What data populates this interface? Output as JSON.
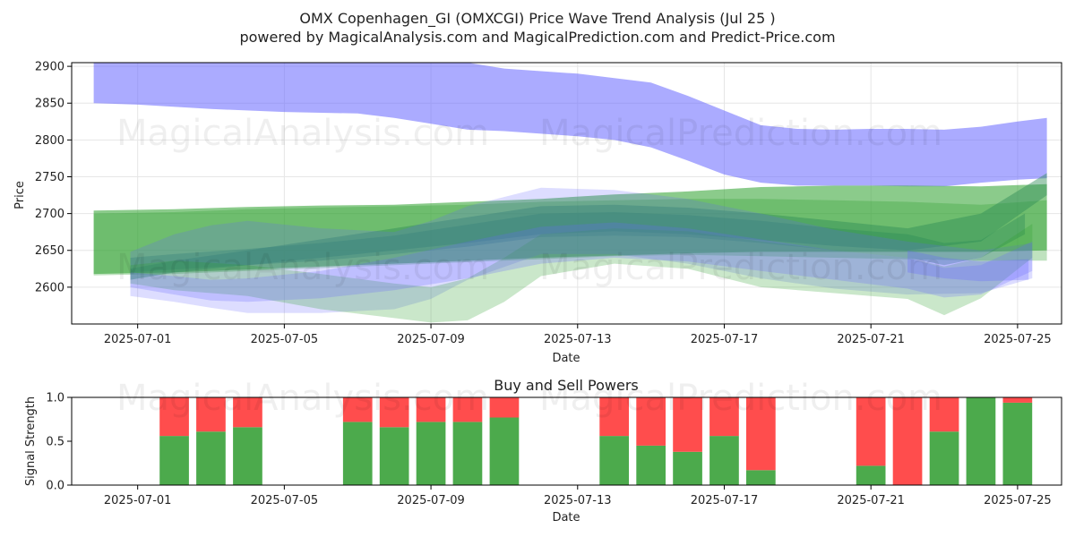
{
  "figure": {
    "title": "OMX Copenhagen_GI (OMXCGI) Price Wave Trend Analysis (Jul 25 )",
    "subtitle": "powered by MagicalAnalysis.com and MagicalPrediction.com and Predict-Price.com",
    "watermarks": [
      "MagicalAnalysis.com",
      "MagicalPrediction.com"
    ]
  },
  "colors": {
    "blue_band": "#6666ff",
    "green_band": "#2ca02c",
    "teal_band": "#2e8b57",
    "buy": "#4caa4c",
    "sell": "#ff4d4d",
    "grid": "#e6e6e6",
    "axis": "#000000"
  },
  "chart_data": [
    {
      "type": "area",
      "title": "",
      "xlabel": "Date",
      "ylabel": "Price",
      "x_range_days": [
        -1.8,
        25.2
      ],
      "ylim": [
        2550,
        2905
      ],
      "date_origin": "2025-07-01",
      "x_ticks": [
        {
          "day": 0,
          "label": "2025-07-01"
        },
        {
          "day": 4,
          "label": "2025-07-05"
        },
        {
          "day": 8,
          "label": "2025-07-09"
        },
        {
          "day": 12,
          "label": "2025-07-13"
        },
        {
          "day": 16,
          "label": "2025-07-17"
        },
        {
          "day": 20,
          "label": "2025-07-21"
        },
        {
          "day": 24,
          "label": "2025-07-25"
        }
      ],
      "y_ticks": [
        2600,
        2650,
        2700,
        2750,
        2800,
        2850,
        2900
      ],
      "grid": true,
      "series": [
        {
          "name": "upper blue wave",
          "color": "blue",
          "opacity": 0.55,
          "x": [
            -1.2,
            0,
            2,
            4,
            6,
            7,
            8,
            9,
            10,
            12,
            13,
            14,
            15,
            16,
            17,
            18,
            19,
            20,
            21,
            22,
            23,
            24,
            24.8
          ],
          "upper": [
            2905,
            2905,
            2905,
            2905,
            2905,
            2905,
            2905,
            2905,
            2897,
            2890,
            2884,
            2878,
            2860,
            2840,
            2820,
            2815,
            2814,
            2815,
            2815,
            2814,
            2818,
            2825,
            2830
          ],
          "lower": [
            2850,
            2848,
            2842,
            2838,
            2836,
            2830,
            2822,
            2814,
            2812,
            2805,
            2800,
            2790,
            2772,
            2753,
            2742,
            2738,
            2738,
            2738,
            2737,
            2737,
            2742,
            2746,
            2748
          ]
        },
        {
          "name": "wide green band",
          "color": "green",
          "opacity": 0.55,
          "x": [
            -1.2,
            1,
            3,
            5,
            7,
            9,
            11,
            13,
            15,
            17,
            19,
            21,
            23,
            24.8
          ],
          "upper": [
            2704,
            2706,
            2709,
            2711,
            2712,
            2716,
            2720,
            2726,
            2730,
            2736,
            2738,
            2738,
            2737,
            2740
          ],
          "lower": [
            2618,
            2620,
            2624,
            2628,
            2632,
            2636,
            2640,
            2643,
            2646,
            2648,
            2648,
            2648,
            2648,
            2650
          ]
        },
        {
          "name": "green band 2",
          "color": "green",
          "opacity": 0.3,
          "x": [
            -1.2,
            1,
            3,
            5,
            7,
            9,
            11,
            13,
            15,
            17,
            19,
            21,
            23,
            24.8
          ],
          "upper": [
            2700,
            2702,
            2706,
            2708,
            2710,
            2712,
            2716,
            2718,
            2720,
            2720,
            2718,
            2716,
            2712,
            2718
          ],
          "lower": [
            2616,
            2618,
            2622,
            2626,
            2630,
            2634,
            2638,
            2642,
            2644,
            2642,
            2640,
            2638,
            2636,
            2636
          ]
        },
        {
          "name": "teal ribbon high",
          "color": "teal",
          "opacity": 0.45,
          "x": [
            -0.2,
            1,
            3,
            5,
            7,
            9,
            11,
            13,
            15,
            17,
            19,
            21,
            23,
            24.8
          ],
          "upper": [
            2625,
            2636,
            2650,
            2665,
            2680,
            2695,
            2710,
            2712,
            2708,
            2700,
            2690,
            2680,
            2700,
            2755
          ],
          "lower": [
            2610,
            2620,
            2630,
            2640,
            2650,
            2660,
            2672,
            2676,
            2672,
            2664,
            2656,
            2650,
            2662,
            2725
          ]
        },
        {
          "name": "teal ribbon mid",
          "color": "teal",
          "opacity": 0.4,
          "x": [
            -0.2,
            1,
            3,
            5,
            7,
            9,
            11,
            13,
            15,
            17,
            19,
            21,
            22,
            23,
            24.2
          ],
          "upper": [
            2640,
            2645,
            2652,
            2660,
            2670,
            2685,
            2700,
            2702,
            2698,
            2690,
            2680,
            2672,
            2660,
            2664,
            2700
          ],
          "lower": [
            2620,
            2624,
            2630,
            2636,
            2645,
            2655,
            2668,
            2670,
            2668,
            2660,
            2650,
            2640,
            2630,
            2640,
            2672
          ]
        },
        {
          "name": "light blue low wave",
          "color": "blue",
          "opacity": 0.22,
          "x": [
            -0.2,
            1,
            2,
            3,
            5,
            7,
            8,
            9,
            11,
            13,
            15,
            17,
            19,
            21,
            23,
            24.4
          ],
          "upper": [
            2648,
            2672,
            2684,
            2690,
            2680,
            2675,
            2690,
            2710,
            2735,
            2732,
            2720,
            2700,
            2678,
            2662,
            2650,
            2660
          ],
          "lower": [
            2588,
            2580,
            2572,
            2565,
            2565,
            2570,
            2584,
            2610,
            2645,
            2645,
            2632,
            2612,
            2598,
            2590,
            2592,
            2612
          ]
        },
        {
          "name": "light green low wave",
          "color": "green",
          "opacity": 0.25,
          "x": [
            -0.2,
            1,
            3,
            5,
            7,
            8,
            9,
            10,
            11,
            13,
            15,
            17,
            19,
            21,
            22,
            23,
            24.4
          ],
          "upper": [
            2630,
            2636,
            2630,
            2618,
            2605,
            2600,
            2612,
            2640,
            2672,
            2680,
            2676,
            2662,
            2650,
            2640,
            2628,
            2640,
            2686
          ],
          "lower": [
            2605,
            2596,
            2588,
            2570,
            2558,
            2552,
            2555,
            2580,
            2615,
            2632,
            2625,
            2600,
            2592,
            2584,
            2562,
            2585,
            2640
          ]
        },
        {
          "name": "blue ribbon",
          "color": "blue",
          "opacity": 0.25,
          "x": [
            -0.2,
            1,
            2,
            3,
            5,
            7,
            9,
            11,
            13,
            15,
            17,
            19,
            21,
            22,
            23,
            24.4
          ],
          "upper": [
            2620,
            2615,
            2610,
            2612,
            2622,
            2640,
            2662,
            2682,
            2688,
            2680,
            2665,
            2650,
            2640,
            2626,
            2630,
            2662
          ],
          "lower": [
            2600,
            2590,
            2582,
            2580,
            2585,
            2596,
            2612,
            2632,
            2640,
            2635,
            2622,
            2610,
            2598,
            2586,
            2590,
            2622
          ]
        },
        {
          "name": "forecast blue right",
          "color": "blue",
          "opacity": 0.3,
          "x": [
            21,
            22,
            23,
            24.3
          ],
          "upper": [
            2650,
            2640,
            2635,
            2638
          ],
          "lower": [
            2620,
            2612,
            2608,
            2610
          ]
        }
      ]
    },
    {
      "type": "bar",
      "title": "Buy and Sell Powers",
      "xlabel": "Date",
      "ylabel": "Signal Strength",
      "ylim": [
        0,
        1.0
      ],
      "x_range_days": [
        -1.8,
        25.2
      ],
      "x_ticks": [
        {
          "day": 0,
          "label": "2025-07-01"
        },
        {
          "day": 4,
          "label": "2025-07-05"
        },
        {
          "day": 8,
          "label": "2025-07-09"
        },
        {
          "day": 12,
          "label": "2025-07-13"
        },
        {
          "day": 16,
          "label": "2025-07-17"
        },
        {
          "day": 20,
          "label": "2025-07-21"
        },
        {
          "day": 24,
          "label": "2025-07-25"
        }
      ],
      "y_ticks": [
        {
          "value": 0.0,
          "label": "0.0"
        },
        {
          "value": 0.5,
          "label": "0.5"
        },
        {
          "value": 1.0,
          "label": "1.0"
        }
      ],
      "categories": [
        "2025-07-02",
        "2025-07-03",
        "2025-07-04",
        "2025-07-07",
        "2025-07-08",
        "2025-07-09",
        "2025-07-10",
        "2025-07-11",
        "2025-07-14",
        "2025-07-15",
        "2025-07-16",
        "2025-07-17",
        "2025-07-18",
        "2025-07-21",
        "2025-07-22",
        "2025-07-23",
        "2025-07-24",
        "2025-07-25"
      ],
      "days": [
        1,
        2,
        3,
        6,
        7,
        8,
        9,
        10,
        13,
        14,
        15,
        16,
        17,
        20,
        21,
        22,
        23,
        24
      ],
      "series": [
        {
          "name": "Buy",
          "values": [
            0.56,
            0.61,
            0.66,
            0.72,
            0.66,
            0.72,
            0.72,
            0.77,
            0.56,
            0.45,
            0.38,
            0.56,
            0.17,
            0.22,
            0.0,
            0.61,
            1.0,
            0.94
          ]
        },
        {
          "name": "Sell",
          "values": [
            0.44,
            0.39,
            0.34,
            0.28,
            0.34,
            0.28,
            0.28,
            0.23,
            0.44,
            0.55,
            0.62,
            0.44,
            0.83,
            0.78,
            1.0,
            0.39,
            0.0,
            0.06
          ]
        }
      ]
    }
  ]
}
